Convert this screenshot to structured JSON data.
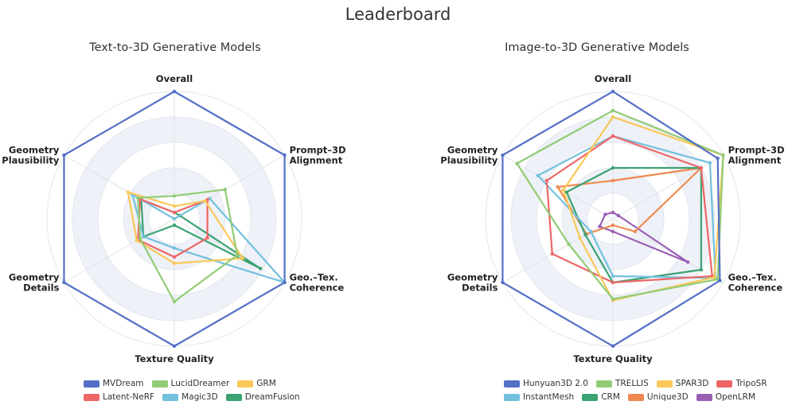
{
  "page": {
    "title": "Leaderboard"
  },
  "chart_data": [
    {
      "type": "radar",
      "title": "Text-to-3D Generative Models",
      "axes": [
        "Overall",
        "Prompt–3D Alignment",
        "Geo.–Tex. Coherence",
        "Texture Quality",
        "Geometry Details",
        "Geometry Plausibility"
      ],
      "axis_label_lines": [
        [
          "Overall"
        ],
        [
          "Prompt–3D",
          "Alignment"
        ],
        [
          "Geo.–Tex.",
          "Coherence"
        ],
        [
          "Texture Quality"
        ],
        [
          "Geometry",
          "Details"
        ],
        [
          "Geometry",
          "Plausibility"
        ]
      ],
      "range": [
        0,
        1
      ],
      "series": [
        {
          "name": "MVDream",
          "color": "#5470c6",
          "values": [
            1.0,
            1.0,
            1.0,
            1.0,
            1.0,
            1.0
          ]
        },
        {
          "name": "LucidDreamer",
          "color": "#91cc75",
          "values": [
            0.18,
            0.46,
            0.57,
            0.65,
            0.31,
            0.33
          ]
        },
        {
          "name": "GRM",
          "color": "#fac858",
          "values": [
            0.1,
            0.28,
            0.62,
            0.35,
            0.34,
            0.42
          ]
        },
        {
          "name": "Latent-NeRF",
          "color": "#ee6666",
          "values": [
            0.05,
            0.3,
            0.3,
            0.3,
            0.33,
            0.31
          ]
        },
        {
          "name": "Magic3D",
          "color": "#73c0de",
          "values": [
            0.0,
            0.32,
            1.0,
            0.23,
            0.28,
            0.38
          ]
        },
        {
          "name": "DreamFusion",
          "color": "#3ba272",
          "values": [
            0.05,
            0.05,
            0.78,
            0.05,
            0.28,
            0.3
          ]
        }
      ],
      "legend_rows": [
        [
          "MVDream",
          "LucidDreamer",
          "GRM"
        ],
        [
          "Latent-NeRF",
          "Magic3D",
          "DreamFusion"
        ]
      ]
    },
    {
      "type": "radar",
      "title": "Image-to-3D Generative Models",
      "axes": [
        "Overall",
        "Prompt–3D Alignment",
        "Geo.–Tex. Coherence",
        "Texture Quality",
        "Geometry Details",
        "Geometry Plausibility"
      ],
      "axis_label_lines": [
        [
          "Overall"
        ],
        [
          "Prompt–3D",
          "Alignment"
        ],
        [
          "Geo.–Tex.",
          "Coherence"
        ],
        [
          "Texture Quality"
        ],
        [
          "Geometry",
          "Details"
        ],
        [
          "Geometry",
          "Plausibility"
        ]
      ],
      "range": [
        0,
        1
      ],
      "series": [
        {
          "name": "Hunyuan3D 2.0",
          "color": "#5470c6",
          "values": [
            1.0,
            0.95,
            0.97,
            1.0,
            1.0,
            1.0
          ]
        },
        {
          "name": "TRELLIS",
          "color": "#91cc75",
          "values": [
            0.85,
            1.0,
            0.95,
            0.63,
            0.4,
            0.87
          ]
        },
        {
          "name": "SPAR3D",
          "color": "#fac858",
          "values": [
            0.8,
            1.0,
            0.92,
            0.64,
            0.3,
            0.45
          ]
        },
        {
          "name": "TripoSR",
          "color": "#ee6666",
          "values": [
            0.65,
            0.8,
            0.9,
            0.5,
            0.55,
            0.6
          ]
        },
        {
          "name": "InstantMesh",
          "color": "#73c0de",
          "values": [
            0.65,
            0.88,
            0.93,
            0.45,
            0.2,
            0.68
          ]
        },
        {
          "name": "CRM",
          "color": "#3ba272",
          "values": [
            0.4,
            0.8,
            0.8,
            0.5,
            0.25,
            0.42
          ]
        },
        {
          "name": "Unique3D",
          "color": "#ee8a4f",
          "values": [
            0.3,
            0.8,
            0.2,
            0.05,
            0.24,
            0.5
          ]
        },
        {
          "name": "OpenLRM",
          "color": "#9a60b4",
          "values": [
            0.05,
            0.05,
            0.68,
            0.1,
            0.12,
            0.07
          ]
        }
      ],
      "legend_rows": [
        [
          "Hunyuan3D 2.0",
          "TRELLIS",
          "SPAR3D",
          "TripoSR"
        ],
        [
          "InstantMesh",
          "CRM",
          "Unique3D",
          "OpenLRM"
        ]
      ]
    }
  ]
}
